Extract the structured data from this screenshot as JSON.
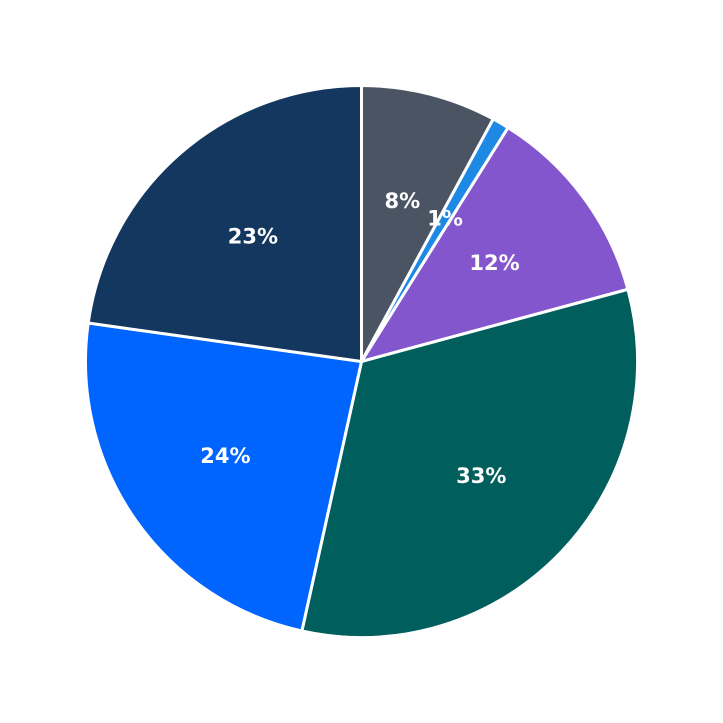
{
  "chart_data": {
    "type": "pie",
    "title": "",
    "start_angle_deg": 90,
    "direction": "clockwise",
    "slices": [
      {
        "value": 8,
        "label": "8%",
        "color": "#4a5463"
      },
      {
        "value": 1,
        "label": "1%",
        "color": "#1e88e5"
      },
      {
        "value": 12,
        "label": "12%",
        "color": "#8456cd"
      },
      {
        "value": 33,
        "label": "33%",
        "color": "#005e5d"
      },
      {
        "value": 24,
        "label": "24%",
        "color": "#0064ff"
      },
      {
        "value": 23,
        "label": "23%",
        "color": "#14375f"
      }
    ]
  }
}
